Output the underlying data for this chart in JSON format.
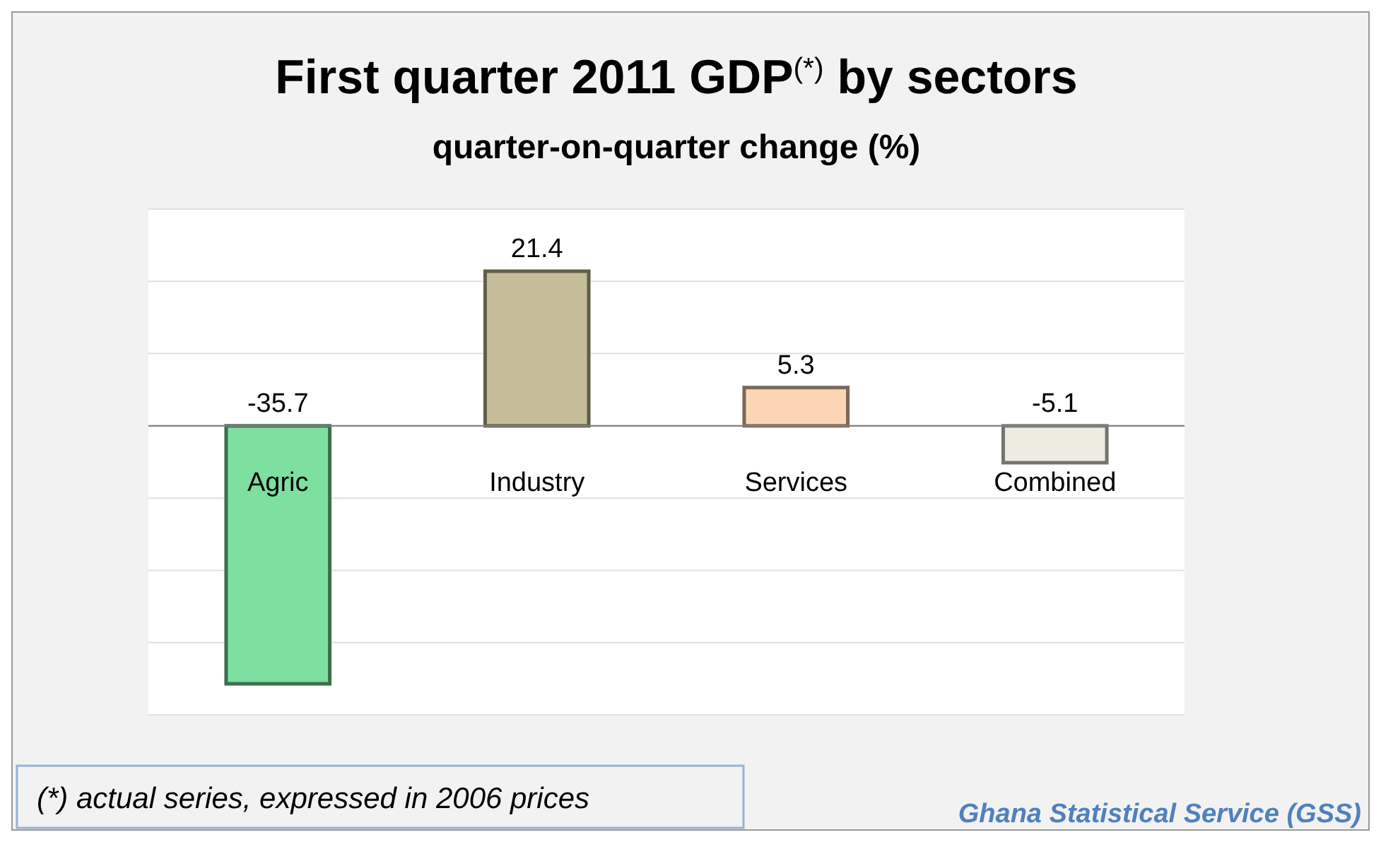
{
  "chart_data": {
    "type": "bar",
    "title": "First quarter 2011 GDP$^{(*)}$ by sectors",
    "subtitle": "quarter-on-quarter change (%)",
    "categories": [
      "Agric",
      "Industry",
      "Services",
      "Combined"
    ],
    "values": [
      -35.7,
      21.4,
      5.3,
      -5.1
    ],
    "colors": [
      "#7ddfa0",
      "#c4bd97",
      "#fcd5b4",
      "#eeece1"
    ],
    "data_labels": true,
    "ylim": [
      -40,
      30
    ],
    "yticks": [
      {
        "value": -40,
        "label": null
      },
      {
        "value": -30,
        "label": null
      },
      {
        "value": -20,
        "label": null
      },
      {
        "value": -10,
        "label": null
      },
      {
        "value": 0,
        "label": null
      },
      {
        "value": 10,
        "label": null
      },
      {
        "value": 20,
        "label": null
      },
      {
        "value": 30,
        "label": null
      }
    ],
    "tick_labels": "x",
    "grid": "y",
    "annotations": [
      "(*) actual series, expressed in 2006 prices",
      "Ghana Statistical Service (GSS)"
    ]
  }
}
